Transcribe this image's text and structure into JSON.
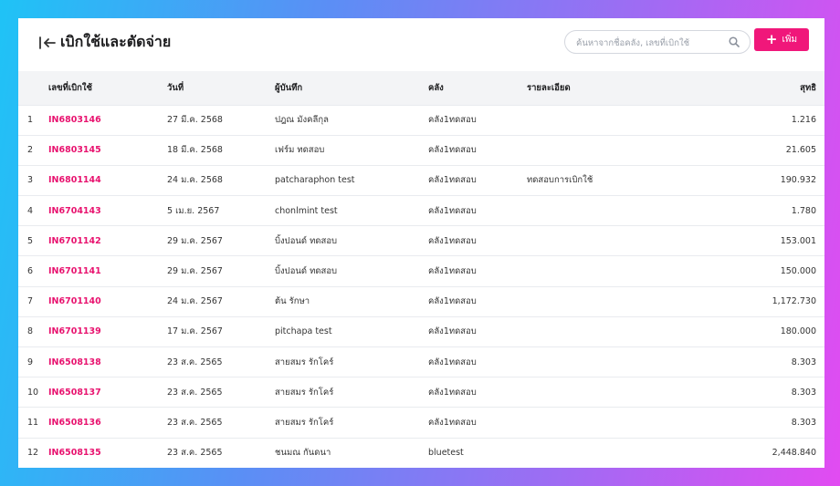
{
  "page": {
    "title": "เบิกใช้และตัดจ่าย",
    "search_placeholder": "ค้นหาจากชื่อคลัง, เลขที่เบิกใช้",
    "add_label": "เพิ่ม"
  },
  "colors": {
    "accent": "#f0177a",
    "code_text": "#e8136f"
  },
  "icons": {
    "back": "collapse-left-icon",
    "search": "search-icon",
    "add": "plus-icon"
  },
  "columns": [
    "เลขที่เบิกใช้",
    "วันที่",
    "ผู้บันทึก",
    "คลัง",
    "รายละเอียด",
    "สุทธิ"
  ],
  "rows": [
    {
      "idx": "1",
      "code": "IN6803146",
      "date": "27 มี.ค. 2568",
      "person": "ปฎณ มังคลีกุล",
      "warehouse": "คลัง1ทดสอบ",
      "detail": "",
      "total": "1.216"
    },
    {
      "idx": "2",
      "code": "IN6803145",
      "date": "18 มี.ค. 2568",
      "person": "เฟร์ม ทดสอบ",
      "warehouse": "คลัง1ทดสอบ",
      "detail": "",
      "total": "21.605"
    },
    {
      "idx": "3",
      "code": "IN6801144",
      "date": "24 ม.ค. 2568",
      "person": "patcharaphon test",
      "warehouse": "คลัง1ทดสอบ",
      "detail": "ทดสอบการเบิกใช้",
      "total": "190.932"
    },
    {
      "idx": "4",
      "code": "IN6704143",
      "date": "5 เม.ย. 2567",
      "person": "chonlmint test",
      "warehouse": "คลัง1ทดสอบ",
      "detail": "",
      "total": "1.780"
    },
    {
      "idx": "5",
      "code": "IN6701142",
      "date": "29 ม.ค. 2567",
      "person": "บิ้งปอนด์ ทดสอบ",
      "warehouse": "คลัง1ทดสอบ",
      "detail": "",
      "total": "153.001"
    },
    {
      "idx": "6",
      "code": "IN6701141",
      "date": "29 ม.ค. 2567",
      "person": "บิ้งปอนด์ ทดสอบ",
      "warehouse": "คลัง1ทดสอบ",
      "detail": "",
      "total": "150.000"
    },
    {
      "idx": "7",
      "code": "IN6701140",
      "date": "24 ม.ค. 2567",
      "person": "ต้น รักษา",
      "warehouse": "คลัง1ทดสอบ",
      "detail": "",
      "total": "1,172.730"
    },
    {
      "idx": "8",
      "code": "IN6701139",
      "date": "17 ม.ค. 2567",
      "person": "pitchapa test",
      "warehouse": "คลัง1ทดสอบ",
      "detail": "",
      "total": "180.000"
    },
    {
      "idx": "9",
      "code": "IN6508138",
      "date": "23 ส.ค. 2565",
      "person": "สายสมร รักโคร์",
      "warehouse": "คลัง1ทดสอบ",
      "detail": "",
      "total": "8.303"
    },
    {
      "idx": "10",
      "code": "IN6508137",
      "date": "23 ส.ค. 2565",
      "person": "สายสมร รักโคร์",
      "warehouse": "คลัง1ทดสอบ",
      "detail": "",
      "total": "8.303"
    },
    {
      "idx": "11",
      "code": "IN6508136",
      "date": "23 ส.ค. 2565",
      "person": "สายสมร รักโคร์",
      "warehouse": "คลัง1ทดสอบ",
      "detail": "",
      "total": "8.303"
    },
    {
      "idx": "12",
      "code": "IN6508135",
      "date": "23 ส.ค. 2565",
      "person": "ชนมณ กันดนา",
      "warehouse": "bluetest",
      "detail": "",
      "total": "2,448.840"
    }
  ]
}
